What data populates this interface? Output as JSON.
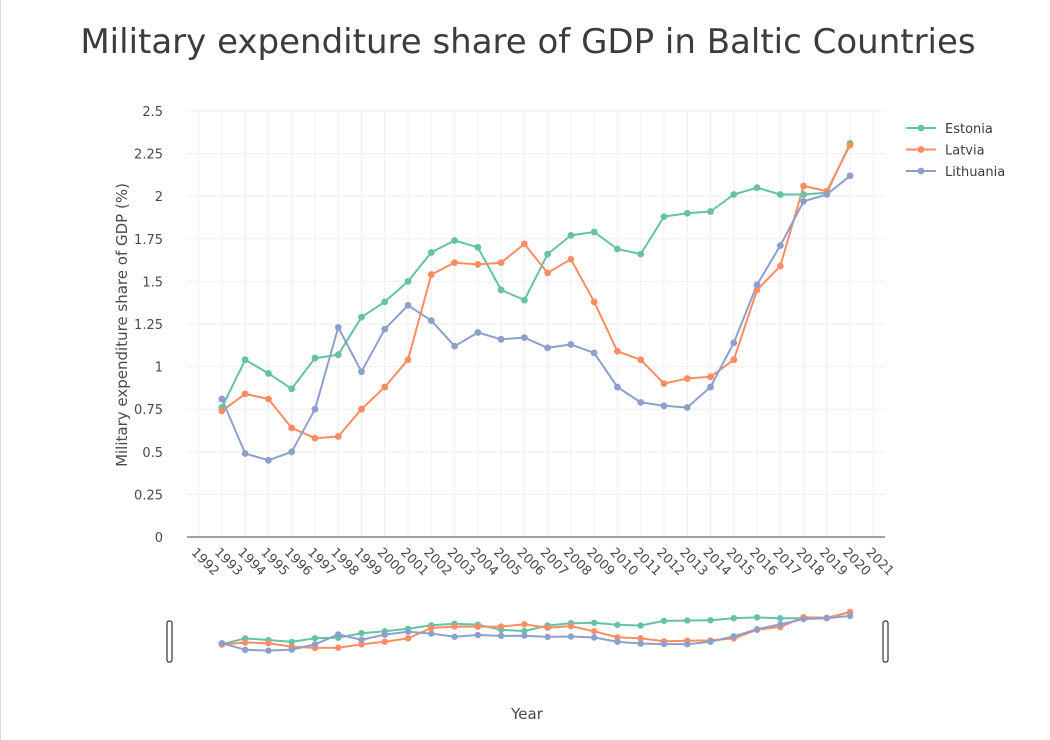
{
  "chart_data": {
    "type": "line",
    "title": "Military expenditure share of GDP in Baltic Countries",
    "xlabel": "Year",
    "ylabel": "Military expenditure share of GDP (%)",
    "xlim": [
      1991.5,
      2021.5
    ],
    "ylim": [
      0,
      2.5
    ],
    "x_ticks": [
      "1992",
      "1993",
      "1994",
      "1995",
      "1996",
      "1997",
      "1998",
      "1999",
      "2000",
      "2001",
      "2002",
      "2003",
      "2004",
      "2005",
      "2006",
      "2007",
      "2008",
      "2009",
      "2010",
      "2011",
      "2012",
      "2013",
      "2014",
      "2015",
      "2016",
      "2017",
      "2018",
      "2019",
      "2020",
      "2021"
    ],
    "y_ticks": [
      "0",
      "0.25",
      "0.5",
      "0.75",
      "1",
      "1.25",
      "1.5",
      "1.75",
      "2",
      "2.25",
      "2.5"
    ],
    "legend_position": "top-right",
    "grid": true,
    "x": [
      1993,
      1994,
      1995,
      1996,
      1997,
      1998,
      1999,
      2000,
      2001,
      2002,
      2003,
      2004,
      2005,
      2006,
      2007,
      2008,
      2009,
      2010,
      2011,
      2012,
      2013,
      2014,
      2015,
      2016,
      2017,
      2018,
      2019,
      2020
    ],
    "series": [
      {
        "name": "Estonia",
        "color": "#66c2a5",
        "values": [
          0.76,
          1.04,
          0.96,
          0.87,
          1.05,
          1.07,
          1.29,
          1.38,
          1.5,
          1.67,
          1.74,
          1.7,
          1.45,
          1.39,
          1.66,
          1.77,
          1.79,
          1.69,
          1.66,
          1.88,
          1.9,
          1.91,
          2.01,
          2.05,
          2.01,
          2.01,
          2.02,
          2.31
        ]
      },
      {
        "name": "Latvia",
        "color": "#fc8d62",
        "values": [
          0.74,
          0.84,
          0.81,
          0.64,
          0.58,
          0.59,
          0.75,
          0.88,
          1.04,
          1.54,
          1.61,
          1.6,
          1.61,
          1.72,
          1.55,
          1.63,
          1.38,
          1.09,
          1.04,
          0.9,
          0.93,
          0.94,
          1.04,
          1.45,
          1.59,
          2.06,
          2.03,
          2.3
        ]
      },
      {
        "name": "Lithuania",
        "color": "#8da0cb",
        "values": [
          0.81,
          0.49,
          0.45,
          0.5,
          0.75,
          1.23,
          0.97,
          1.22,
          1.36,
          1.27,
          1.12,
          1.2,
          1.16,
          1.17,
          1.11,
          1.13,
          1.08,
          0.88,
          0.79,
          0.77,
          0.76,
          0.88,
          1.14,
          1.48,
          1.71,
          1.97,
          2.01,
          2.12
        ]
      }
    ]
  }
}
